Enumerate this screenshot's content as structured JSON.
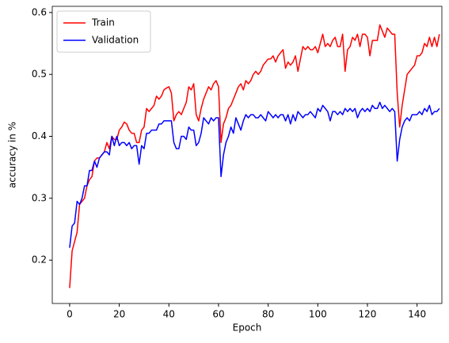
{
  "chart_data": {
    "type": "line",
    "xlabel": "Epoch",
    "ylabel": "accuracy in %",
    "x": [
      0,
      1,
      2,
      3,
      4,
      5,
      6,
      7,
      8,
      9,
      10,
      11,
      12,
      13,
      14,
      15,
      16,
      17,
      18,
      19,
      20,
      21,
      22,
      23,
      24,
      25,
      26,
      27,
      28,
      29,
      30,
      31,
      32,
      33,
      34,
      35,
      36,
      37,
      38,
      39,
      40,
      41,
      42,
      43,
      44,
      45,
      46,
      47,
      48,
      49,
      50,
      51,
      52,
      53,
      54,
      55,
      56,
      57,
      58,
      59,
      60,
      61,
      62,
      63,
      64,
      65,
      66,
      67,
      68,
      69,
      70,
      71,
      72,
      73,
      74,
      75,
      76,
      77,
      78,
      79,
      80,
      81,
      82,
      83,
      84,
      85,
      86,
      87,
      88,
      89,
      90,
      91,
      92,
      93,
      94,
      95,
      96,
      97,
      98,
      99,
      100,
      101,
      102,
      103,
      104,
      105,
      106,
      107,
      108,
      109,
      110,
      111,
      112,
      113,
      114,
      115,
      116,
      117,
      118,
      119,
      120,
      121,
      122,
      123,
      124,
      125,
      126,
      127,
      128,
      129,
      130,
      131,
      132,
      133,
      134,
      135,
      136,
      137,
      138,
      139,
      140,
      141,
      142,
      143,
      144,
      145,
      146,
      147,
      148,
      149
    ],
    "series": [
      {
        "name": "Train",
        "color": "#ff0000",
        "values": [
          0.155,
          0.215,
          0.23,
          0.245,
          0.29,
          0.295,
          0.3,
          0.32,
          0.33,
          0.335,
          0.36,
          0.365,
          0.365,
          0.37,
          0.375,
          0.39,
          0.38,
          0.4,
          0.395,
          0.395,
          0.41,
          0.415,
          0.423,
          0.42,
          0.41,
          0.405,
          0.405,
          0.39,
          0.39,
          0.41,
          0.415,
          0.445,
          0.44,
          0.445,
          0.45,
          0.465,
          0.46,
          0.465,
          0.475,
          0.478,
          0.48,
          0.47,
          0.425,
          0.435,
          0.44,
          0.435,
          0.445,
          0.455,
          0.48,
          0.475,
          0.485,
          0.435,
          0.425,
          0.445,
          0.46,
          0.47,
          0.48,
          0.475,
          0.485,
          0.49,
          0.48,
          0.39,
          0.42,
          0.43,
          0.445,
          0.45,
          0.46,
          0.47,
          0.48,
          0.485,
          0.475,
          0.49,
          0.485,
          0.49,
          0.5,
          0.505,
          0.5,
          0.505,
          0.515,
          0.52,
          0.525,
          0.525,
          0.53,
          0.52,
          0.53,
          0.535,
          0.54,
          0.51,
          0.52,
          0.515,
          0.52,
          0.53,
          0.505,
          0.525,
          0.545,
          0.54,
          0.545,
          0.54,
          0.54,
          0.545,
          0.535,
          0.55,
          0.565,
          0.545,
          0.55,
          0.545,
          0.555,
          0.56,
          0.545,
          0.545,
          0.565,
          0.505,
          0.54,
          0.545,
          0.56,
          0.555,
          0.565,
          0.545,
          0.565,
          0.565,
          0.56,
          0.53,
          0.555,
          0.555,
          0.555,
          0.58,
          0.57,
          0.56,
          0.575,
          0.57,
          0.565,
          0.565,
          0.47,
          0.415,
          0.45,
          0.475,
          0.5,
          0.505,
          0.51,
          0.515,
          0.53,
          0.53,
          0.535,
          0.55,
          0.545,
          0.56,
          0.545,
          0.56,
          0.545,
          0.565
        ]
      },
      {
        "name": "Validation",
        "color": "#0000ff",
        "values": [
          0.22,
          0.255,
          0.26,
          0.295,
          0.29,
          0.3,
          0.32,
          0.32,
          0.345,
          0.345,
          0.36,
          0.35,
          0.365,
          0.37,
          0.375,
          0.375,
          0.37,
          0.4,
          0.385,
          0.4,
          0.385,
          0.39,
          0.39,
          0.385,
          0.39,
          0.38,
          0.385,
          0.385,
          0.355,
          0.385,
          0.38,
          0.405,
          0.405,
          0.41,
          0.41,
          0.41,
          0.42,
          0.42,
          0.425,
          0.425,
          0.425,
          0.425,
          0.39,
          0.38,
          0.38,
          0.4,
          0.4,
          0.395,
          0.415,
          0.41,
          0.41,
          0.385,
          0.39,
          0.405,
          0.43,
          0.425,
          0.42,
          0.43,
          0.425,
          0.43,
          0.43,
          0.335,
          0.37,
          0.39,
          0.4,
          0.415,
          0.405,
          0.43,
          0.42,
          0.41,
          0.425,
          0.435,
          0.43,
          0.435,
          0.435,
          0.43,
          0.43,
          0.435,
          0.43,
          0.425,
          0.44,
          0.435,
          0.43,
          0.435,
          0.43,
          0.435,
          0.435,
          0.425,
          0.435,
          0.42,
          0.435,
          0.425,
          0.44,
          0.435,
          0.43,
          0.435,
          0.435,
          0.44,
          0.435,
          0.43,
          0.445,
          0.44,
          0.45,
          0.445,
          0.44,
          0.425,
          0.44,
          0.44,
          0.435,
          0.44,
          0.435,
          0.445,
          0.44,
          0.445,
          0.44,
          0.445,
          0.43,
          0.44,
          0.445,
          0.44,
          0.445,
          0.44,
          0.45,
          0.445,
          0.445,
          0.455,
          0.445,
          0.45,
          0.445,
          0.44,
          0.445,
          0.44,
          0.36,
          0.395,
          0.415,
          0.425,
          0.43,
          0.425,
          0.435,
          0.435,
          0.435,
          0.44,
          0.435,
          0.445,
          0.44,
          0.45,
          0.435,
          0.44,
          0.44,
          0.445
        ]
      }
    ],
    "xlim": [
      -7,
      150
    ],
    "ylim": [
      0.13,
      0.61
    ],
    "xticks": [
      0,
      20,
      40,
      60,
      80,
      100,
      120,
      140
    ],
    "yticks": [
      0.2,
      0.3,
      0.4,
      0.5,
      0.6
    ],
    "legend": "upper left"
  }
}
